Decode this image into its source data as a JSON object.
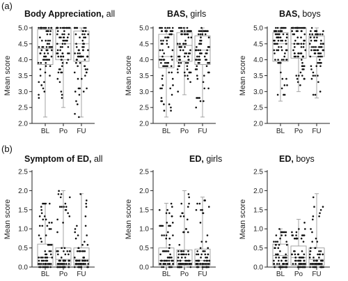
{
  "panel_labels": [
    "(a)",
    "(b)"
  ],
  "chart_data": [
    {
      "type": "box",
      "title_bold": "Body Appreciation,",
      "title_rest": " all",
      "ylabel": "Mean score",
      "categories": [
        "BL",
        "Po",
        "FU"
      ],
      "ylim": [
        2.0,
        5.0
      ],
      "yticks": [
        "2.0",
        "2.5",
        "3.0",
        "3.5",
        "4.0",
        "4.5",
        "5.0"
      ],
      "series": [
        {
          "min": 2.2,
          "q1": 3.85,
          "median": 4.35,
          "q3": 4.95,
          "max": 5.0
        },
        {
          "min": 2.5,
          "q1": 4.0,
          "median": 4.5,
          "q3": 5.0,
          "max": 5.0
        },
        {
          "min": 2.2,
          "q1": 3.95,
          "median": 4.5,
          "q3": 4.9,
          "max": 5.0
        }
      ]
    },
    {
      "type": "box",
      "title_bold": "BAS,",
      "title_rest": " girls",
      "ylabel": "Mean score",
      "categories": [
        "BL",
        "Po",
        "FU"
      ],
      "ylim": [
        2.0,
        5.0
      ],
      "yticks": [
        "2.0",
        "2.5",
        "3.0",
        "3.5",
        "4.0",
        "4.5",
        "5.0"
      ],
      "series": [
        {
          "min": 2.2,
          "q1": 3.75,
          "median": 4.1,
          "q3": 4.8,
          "max": 5.0
        },
        {
          "min": 2.9,
          "q1": 3.95,
          "median": 4.45,
          "q3": 4.85,
          "max": 5.0
        },
        {
          "min": 2.2,
          "q1": 3.85,
          "median": 4.3,
          "q3": 4.75,
          "max": 5.0
        }
      ]
    },
    {
      "type": "box",
      "title_bold": "BAS,",
      "title_rest": " boys",
      "ylabel": "Mean score",
      "categories": [
        "BL",
        "Po",
        "FU"
      ],
      "ylim": [
        2.0,
        5.0
      ],
      "yticks": [
        "2.0",
        "2.5",
        "3.0",
        "3.5",
        "4.0",
        "4.5",
        "5.0"
      ],
      "series": [
        {
          "min": 2.7,
          "q1": 3.95,
          "median": 4.5,
          "q3": 4.85,
          "max": 5.0
        },
        {
          "min": 3.0,
          "q1": 4.05,
          "median": 4.5,
          "q3": 5.0,
          "max": 5.0
        },
        {
          "min": 2.8,
          "q1": 4.1,
          "median": 4.4,
          "q3": 4.75,
          "max": 5.0
        }
      ]
    },
    {
      "type": "box",
      "title_bold": "Symptom of ED,",
      "title_rest": " all",
      "ylabel": "Mean score",
      "categories": [
        "BL",
        "Po",
        "FU"
      ],
      "ylim": [
        0.0,
        2.5
      ],
      "yticks": [
        "0.0",
        "0.5",
        "1.0",
        "1.5",
        "2.0",
        "2.5"
      ],
      "series": [
        {
          "min": 0.0,
          "q1": 0.05,
          "median": 0.25,
          "q3": 0.6,
          "max": 1.67
        },
        {
          "min": 0.0,
          "q1": 0.05,
          "median": 0.2,
          "q3": 0.5,
          "max": 2.0
        },
        {
          "min": 0.0,
          "q1": 0.05,
          "median": 0.2,
          "q3": 0.5,
          "max": 1.92
        }
      ]
    },
    {
      "type": "box",
      "title_bold": "ED,",
      "title_rest": " girls",
      "ylabel": "Mean score",
      "categories": [
        "BL",
        "Po",
        "FU"
      ],
      "ylim": [
        0.0,
        2.5
      ],
      "yticks": [
        "0.0",
        "0.5",
        "1.0",
        "1.5",
        "2.0",
        "2.5"
      ],
      "series": [
        {
          "min": 0.0,
          "q1": 0.05,
          "median": 0.17,
          "q3": 0.5,
          "max": 1.67
        },
        {
          "min": 0.0,
          "q1": 0.05,
          "median": 0.17,
          "q3": 0.45,
          "max": 2.0
        },
        {
          "min": 0.0,
          "q1": 0.05,
          "median": 0.17,
          "q3": 0.47,
          "max": 1.83
        }
      ]
    },
    {
      "type": "box",
      "title_bold": "ED,",
      "title_rest": " boys",
      "ylabel": "Mean score",
      "categories": [
        "BL",
        "Po",
        "FU"
      ],
      "ylim": [
        0.0,
        2.5
      ],
      "yticks": [
        "0.0",
        "0.5",
        "1.0",
        "1.5",
        "2.0",
        "2.5"
      ],
      "series": [
        {
          "min": 0.0,
          "q1": 0.05,
          "median": 0.3,
          "q3": 0.6,
          "max": 1.0
        },
        {
          "min": 0.0,
          "q1": 0.05,
          "median": 0.25,
          "q3": 0.55,
          "max": 1.25
        },
        {
          "min": 0.0,
          "q1": 0.05,
          "median": 0.2,
          "q3": 0.5,
          "max": 1.92
        }
      ]
    }
  ]
}
